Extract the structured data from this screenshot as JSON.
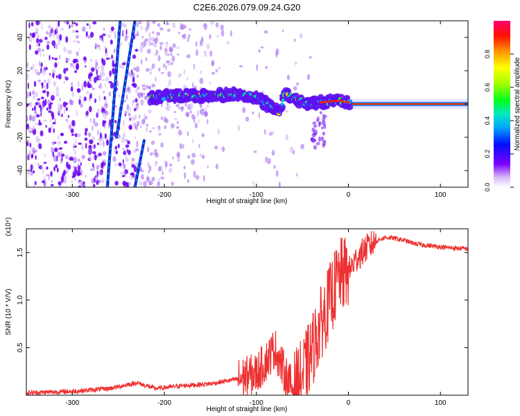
{
  "figure_title": "C2E6.2026.079.09.24.G20",
  "chart_data": [
    {
      "type": "heatmap",
      "name": "spectrogram",
      "title": "C2E6.2026.079.09.24.G20",
      "xlabel": "Height of straight line (km)",
      "ylabel": "Frequency (Hz)",
      "xlim": [
        -350,
        130
      ],
      "ylim": [
        -50,
        50
      ],
      "xticks": [
        -300,
        -200,
        -100,
        0,
        100
      ],
      "yticks": [
        -40,
        -20,
        0,
        20,
        40
      ],
      "colorbar": {
        "label": "Normalized spectral amplitude",
        "range": [
          0.0,
          1.0
        ],
        "ticks": [
          0.0,
          0.2,
          0.4,
          0.6,
          0.8
        ],
        "tick_labels": [
          "0.0",
          "0.2",
          "0.4",
          "0.6",
          "0.8"
        ]
      },
      "main_band": [
        {
          "x": -215,
          "f": 4
        },
        {
          "x": -180,
          "f": 5
        },
        {
          "x": -150,
          "f": 5
        },
        {
          "x": -120,
          "f": 6
        },
        {
          "x": -100,
          "f": 4
        },
        {
          "x": -85,
          "f": -1
        },
        {
          "x": -75,
          "f": -6
        },
        {
          "x": -70,
          "f": 6
        },
        {
          "x": -60,
          "f": 4
        },
        {
          "x": -45,
          "f": 0
        },
        {
          "x": -30,
          "f": 1
        },
        {
          "x": -10,
          "f": 2
        },
        {
          "x": 0,
          "f": 1
        },
        {
          "x": 130,
          "f": 0
        }
      ],
      "streaks": [
        {
          "x0": -262,
          "f0": -50,
          "x1": -248,
          "f1": 50
        },
        {
          "x0": -252,
          "f0": -20,
          "x1": -232,
          "f1": 50
        },
        {
          "x0": -232,
          "f0": -50,
          "x1": -222,
          "f1": -22
        }
      ]
    },
    {
      "type": "line",
      "name": "snr",
      "title": "",
      "xlabel": "Height of straight line (km)",
      "ylabel": "SNR (10 * V/V)",
      "y_multiplier_label": "(x10⁴)",
      "xlim": [
        -350,
        130
      ],
      "ylim": [
        0,
        17500
      ],
      "xticks": [
        -300,
        -200,
        -100,
        0,
        100
      ],
      "yticks": [
        5000,
        10000,
        15000
      ],
      "ytick_labels": [
        "0.5",
        "1.0",
        "1.5"
      ],
      "series": [
        {
          "name": "SNR",
          "color": "#ee3030",
          "x": [
            -350,
            -300,
            -260,
            -240,
            -230,
            -210,
            -180,
            -150,
            -120,
            -100,
            -90,
            -80,
            -70,
            -60,
            -50,
            -40,
            -30,
            -20,
            -10,
            0,
            10,
            20,
            30,
            40,
            50,
            60,
            70,
            80,
            90,
            100,
            110,
            120,
            130
          ],
          "y": [
            250,
            400,
            700,
            1100,
            1300,
            700,
            1000,
            1200,
            1700,
            2300,
            3500,
            5000,
            2500,
            600,
            2000,
            4500,
            7500,
            10000,
            12500,
            13000,
            14500,
            15500,
            16200,
            16600,
            16500,
            16300,
            16000,
            15800,
            15700,
            15600,
            15500,
            15450,
            15400
          ]
        }
      ]
    }
  ]
}
